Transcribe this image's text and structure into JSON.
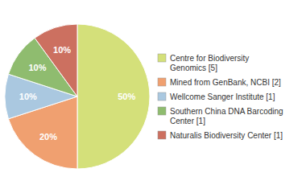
{
  "chart_data": {
    "type": "pie",
    "categories": [
      "Centre for Biodiversity\nGenomics [5]",
      "Mined from GenBank, NCBI [2]",
      "Wellcome Sanger Institute [1]",
      "Southern China DNA Barcoding\nCenter [1]",
      "Naturalis Biodiversity Center [1]"
    ],
    "values": [
      50,
      20,
      10,
      10,
      10
    ],
    "value_labels": [
      "50%",
      "20%",
      "10%",
      "10%",
      "10%"
    ],
    "colors": [
      "#d4e07a",
      "#f0a070",
      "#aac8e0",
      "#8fbc6f",
      "#cc7060"
    ],
    "data_labels": true,
    "legend": "right"
  }
}
